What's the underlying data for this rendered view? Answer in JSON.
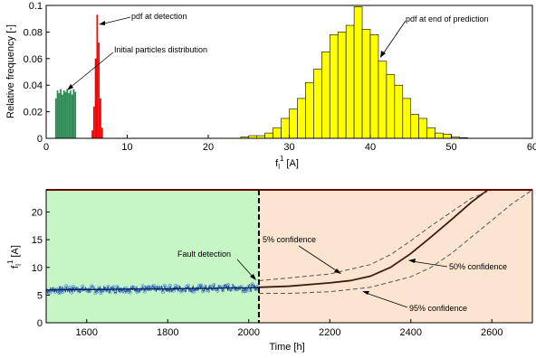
{
  "chart_data": [
    {
      "type": "bar",
      "xlabel_base": "f",
      "xlabel_sub": "l",
      "xlabel_sup": "1",
      "xlabel_unit": "[A]",
      "ylabel": "Relative frequency [-]",
      "xlim": [
        0,
        60
      ],
      "ylim": [
        0,
        0.1
      ],
      "xticks": [
        "0",
        "10",
        "20",
        "30",
        "40",
        "50",
        "60"
      ],
      "yticks": [
        "0",
        "0.02",
        "0.04",
        "0.06",
        "0.08",
        "0.1"
      ],
      "grid": false,
      "annotations": [
        {
          "text": "pdf at detection"
        },
        {
          "text": "Initial particles distribution"
        },
        {
          "text": "pdf at end of prediction"
        }
      ],
      "series": [
        {
          "role": "initial",
          "color": "#2e8b57",
          "x": [
            1.2,
            1.4,
            1.6,
            1.8,
            2.0,
            2.2,
            2.4,
            2.6,
            2.8,
            3.0,
            3.2,
            3.4,
            3.6
          ],
          "values": [
            0.03,
            0.036,
            0.034,
            0.037,
            0.033,
            0.036,
            0.035,
            0.037,
            0.034,
            0.036,
            0.033,
            0.037,
            0.035
          ]
        },
        {
          "role": "detection",
          "color": "#ff0000",
          "x": [
            5.7,
            5.9,
            6.1,
            6.3,
            6.5,
            6.7,
            6.9
          ],
          "values": [
            0.006,
            0.024,
            0.06,
            0.093,
            0.072,
            0.03,
            0.008
          ]
        },
        {
          "role": "end_of_prediction",
          "color": "#ffff00",
          "x": [
            24.5,
            25.5,
            26.5,
            27.5,
            28.5,
            29.5,
            30.5,
            31.5,
            32.5,
            33.5,
            34.5,
            35.5,
            36.5,
            37.5,
            38.5,
            39.5,
            40.5,
            41.5,
            42.5,
            43.5,
            44.5,
            45.5,
            46.5,
            47.5,
            48.5,
            49.5,
            50.5,
            51.5
          ],
          "values": [
            0.001,
            0.002,
            0.002,
            0.004,
            0.008,
            0.015,
            0.022,
            0.03,
            0.042,
            0.052,
            0.065,
            0.078,
            0.08,
            0.085,
            0.099,
            0.082,
            0.078,
            0.058,
            0.048,
            0.04,
            0.03,
            0.018,
            0.015,
            0.008,
            0.004,
            0.003,
            0.001,
            0.0005
          ]
        }
      ]
    },
    {
      "type": "line",
      "xlabel": "Time [h]",
      "ylabel_base": "f",
      "ylabel_sub": "l",
      "ylabel_sup": "1",
      "ylabel_unit": "[A]",
      "xlim": [
        1500,
        2700
      ],
      "ylim": [
        0,
        24
      ],
      "xticks": [
        "1600",
        "1800",
        "2000",
        "2200",
        "2400",
        "2600"
      ],
      "yticks": [
        "0",
        "5",
        "10",
        "15",
        "20"
      ],
      "grid": false,
      "detection_time": 2025,
      "threshold": 24,
      "regions": [
        {
          "role": "before_detection",
          "color": "#c6f5c6"
        },
        {
          "role": "prediction",
          "color": "#fbe4d0"
        }
      ],
      "colors": {
        "measured": "#1e3c8c",
        "threshold": "#cc0000",
        "median": "#3a1e14",
        "bounds": "#555555"
      },
      "measured": {
        "x": [
          1500,
          1550,
          1600,
          1650,
          1700,
          1750,
          1800,
          1850,
          1900,
          1950,
          2000,
          2025
        ],
        "values": [
          5.9,
          6.0,
          6.0,
          6.0,
          6.1,
          6.1,
          6.1,
          6.2,
          6.2,
          6.3,
          6.3,
          6.4
        ]
      },
      "series": [
        {
          "role": "median",
          "x": [
            2025,
            2100,
            2200,
            2250,
            2300,
            2350,
            2400,
            2450,
            2500,
            2550,
            2590
          ],
          "values": [
            6.4,
            6.6,
            7.2,
            7.6,
            8.4,
            10.0,
            12.5,
            15.5,
            18.6,
            21.8,
            24
          ]
        },
        {
          "role": "upper",
          "x": [
            2025,
            2100,
            2200,
            2300,
            2350,
            2400,
            2450,
            2500,
            2550,
            2600,
            2660
          ],
          "values": [
            7.6,
            8.1,
            8.8,
            10.5,
            12.3,
            14.8,
            17.5,
            20.0,
            22.5,
            24,
            24
          ]
        },
        {
          "role": "lower",
          "x": [
            2025,
            2100,
            2200,
            2300,
            2400,
            2450,
            2500,
            2550,
            2600,
            2650,
            2700
          ],
          "values": [
            5.3,
            5.3,
            5.6,
            6.4,
            8.3,
            10.0,
            12.5,
            15.5,
            18.5,
            21.5,
            24
          ]
        }
      ],
      "annotations": [
        {
          "text": "Fault detection"
        },
        {
          "text": "5% confidence"
        },
        {
          "text": "50% confidence"
        },
        {
          "text": "95% confidence"
        }
      ]
    }
  ]
}
